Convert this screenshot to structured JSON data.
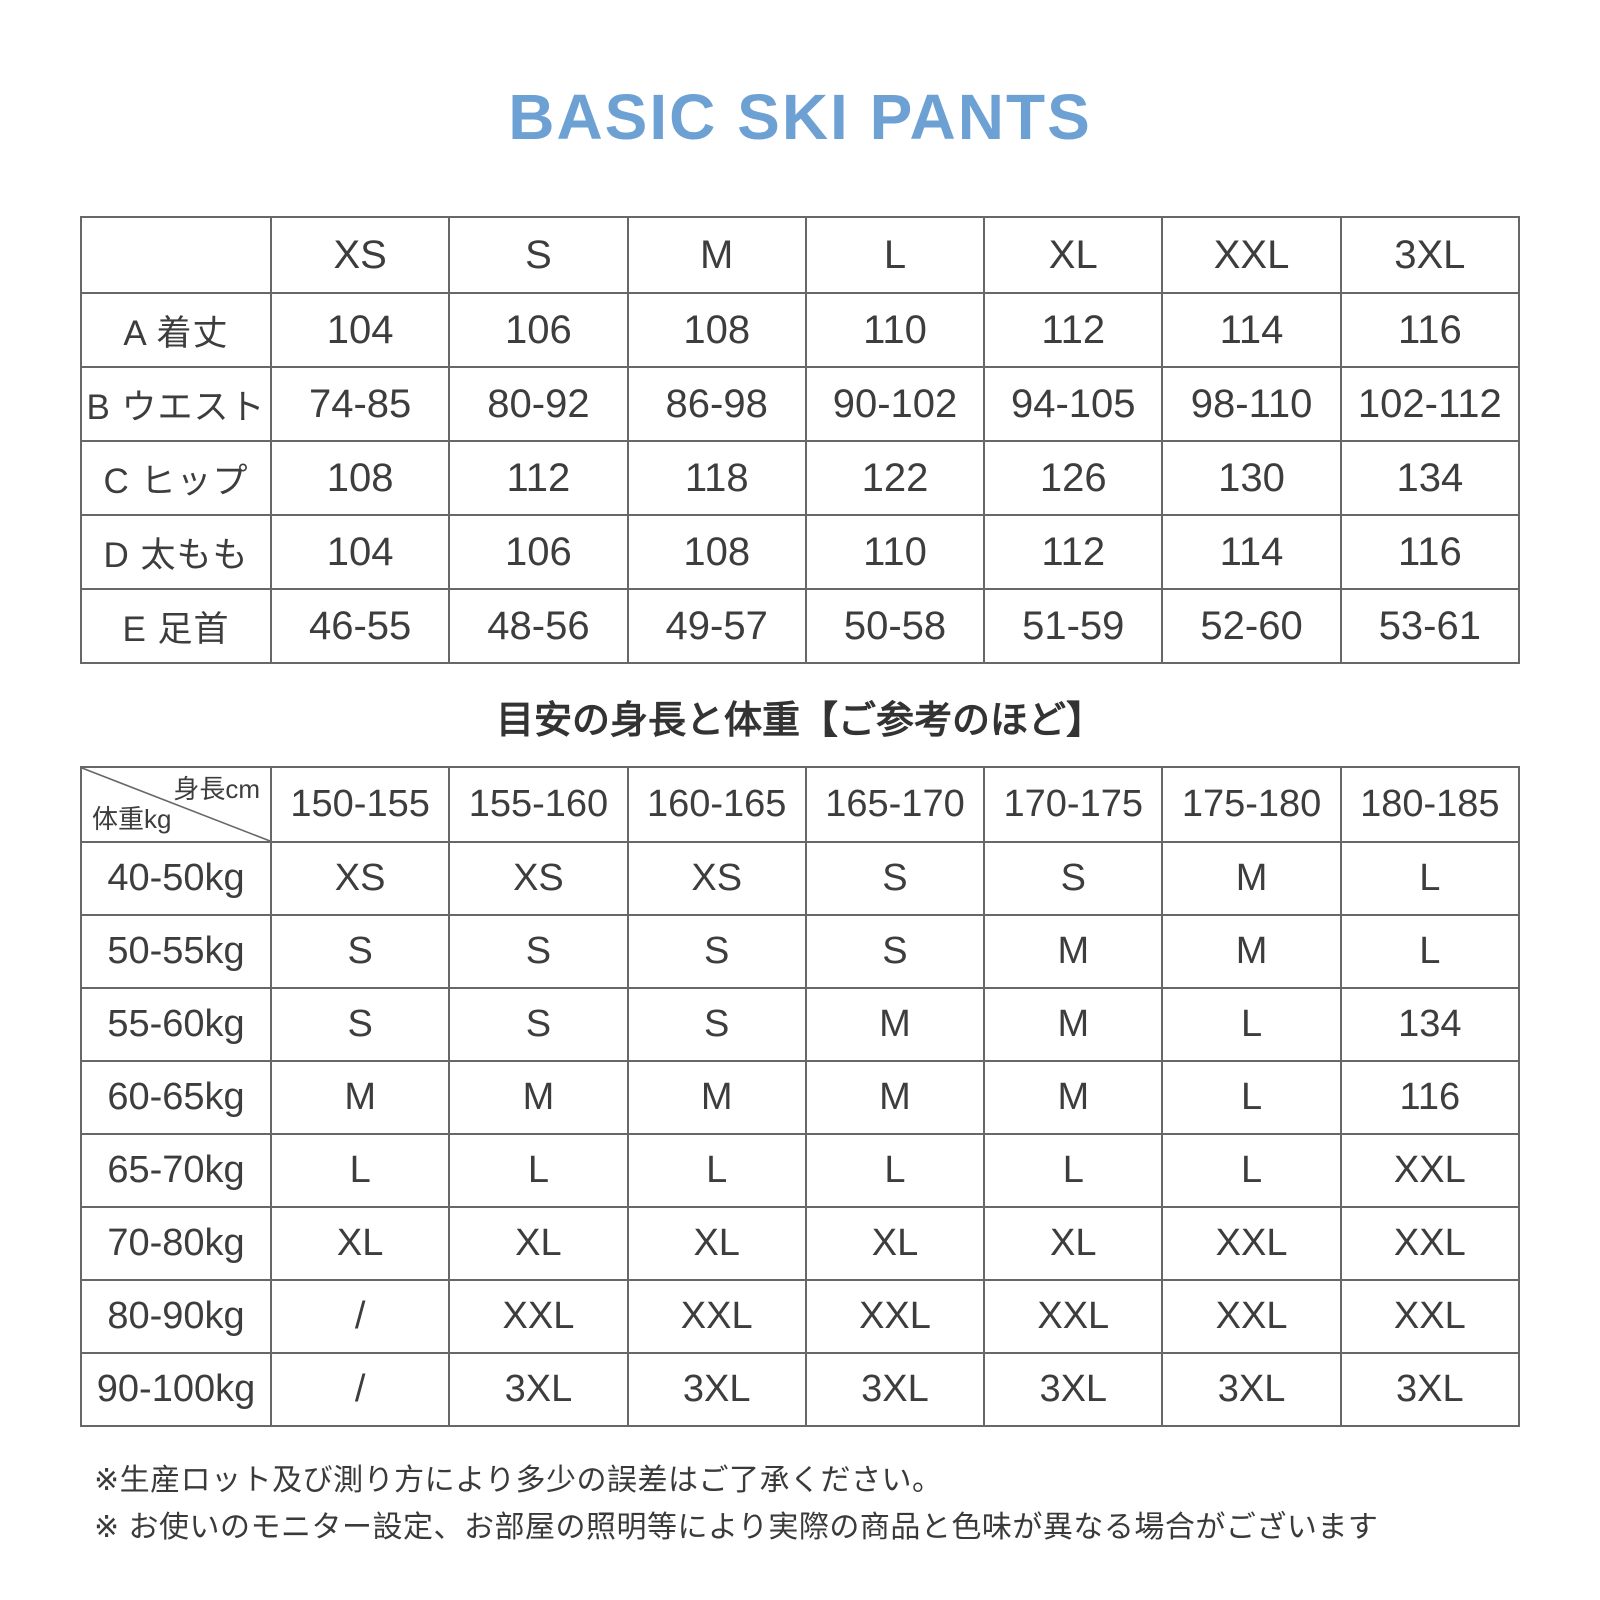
{
  "title": "BASIC SKI PANTS",
  "accent_color": "#6ea1d3",
  "reference_heading": "目安の身長と体重【ご参考のほど】",
  "chart_data": [
    {
      "type": "table",
      "name": "measurement-size-table",
      "columns": [
        "XS",
        "S",
        "M",
        "L",
        "XL",
        "XXL",
        "3XL"
      ],
      "row_labels": [
        "A 着丈",
        "B ウエスト",
        "C ヒップ",
        "D 太もも",
        "E 足首"
      ],
      "rows": [
        [
          "104",
          "106",
          "108",
          "110",
          "112",
          "114",
          "116"
        ],
        [
          "74-85",
          "80-92",
          "86-98",
          "90-102",
          "94-105",
          "98-110",
          "102-112"
        ],
        [
          "108",
          "112",
          "118",
          "122",
          "126",
          "130",
          "134"
        ],
        [
          "104",
          "106",
          "108",
          "110",
          "112",
          "114",
          "116"
        ],
        [
          "46-55",
          "48-56",
          "49-57",
          "50-58",
          "51-59",
          "52-60",
          "53-61"
        ]
      ]
    },
    {
      "type": "table",
      "name": "height-weight-reference-table",
      "corner_top_right": "身長cm",
      "corner_bottom_left": "体重kg",
      "columns": [
        "150-155",
        "155-160",
        "160-165",
        "165-170",
        "170-175",
        "175-180",
        "180-185"
      ],
      "row_labels": [
        "40-50kg",
        "50-55kg",
        "55-60kg",
        "60-65kg",
        "65-70kg",
        "70-80kg",
        "80-90kg",
        "90-100kg"
      ],
      "rows": [
        [
          "XS",
          "XS",
          "XS",
          "S",
          "S",
          "M",
          "L"
        ],
        [
          "S",
          "S",
          "S",
          "S",
          "M",
          "M",
          "L"
        ],
        [
          "S",
          "S",
          "S",
          "M",
          "M",
          "L",
          "134"
        ],
        [
          "M",
          "M",
          "M",
          "M",
          "M",
          "L",
          "116"
        ],
        [
          "L",
          "L",
          "L",
          "L",
          "L",
          "L",
          "XXL"
        ],
        [
          "XL",
          "XL",
          "XL",
          "XL",
          "XL",
          "XXL",
          "XXL"
        ],
        [
          "/",
          "XXL",
          "XXL",
          "XXL",
          "XXL",
          "XXL",
          "XXL"
        ],
        [
          "/",
          "3XL",
          "3XL",
          "3XL",
          "3XL",
          "3XL",
          "3XL"
        ]
      ]
    }
  ],
  "notes": [
    "※生産ロット及び測り方により多少の誤差はご了承ください。",
    "※ お使いのモニター設定、お部屋の照明等により実際の商品と色味が異なる場合がございます"
  ]
}
